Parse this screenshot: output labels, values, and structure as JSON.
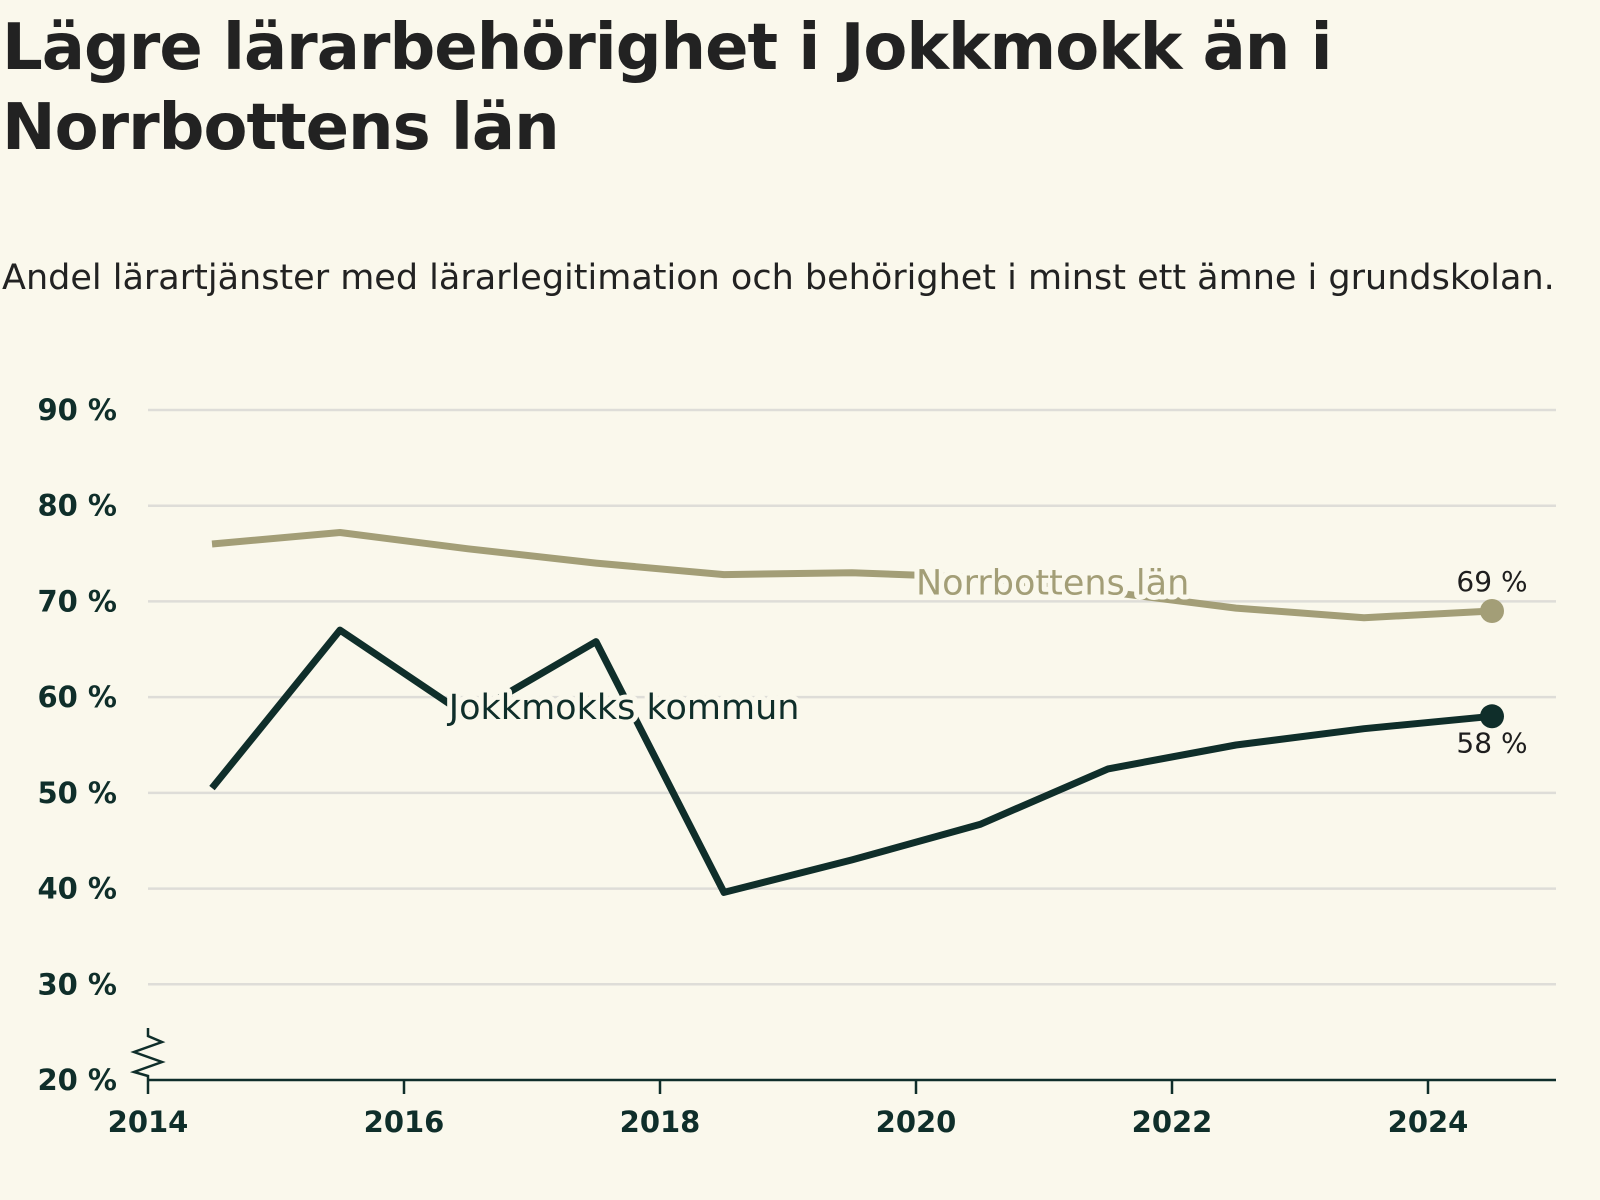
{
  "header": {
    "title": "Lägre lärarbehörighet i Jokkmokk än i Norrbottens län",
    "subtitle": "Andel lärartjänster med lärarlegitimation och behörighet i minst ett ämne i grundskolan."
  },
  "chart_data": {
    "type": "line",
    "x_ticks": [
      2014,
      2016,
      2018,
      2020,
      2022,
      2024
    ],
    "x_tick_labels": [
      "2014",
      "2016",
      "2018",
      "2020",
      "2022",
      "2024"
    ],
    "y_ticks": [
      20,
      30,
      40,
      50,
      60,
      70,
      80,
      90
    ],
    "y_tick_labels": [
      "20 %",
      "30 %",
      "40 %",
      "50 %",
      "60 %",
      "70 %",
      "80 %",
      "90 %"
    ],
    "xlim": [
      2014,
      2025
    ],
    "ylim": [
      20,
      90
    ],
    "y_axis_break": true,
    "grid": true,
    "series": [
      {
        "name": "Norrbottens län",
        "color": "#A39E77",
        "x": [
          2014.5,
          2015.5,
          2016.5,
          2017.5,
          2018.5,
          2019.5,
          2020.5,
          2021.5,
          2022.5,
          2023.5,
          2024.5
        ],
        "values": [
          76,
          77.2,
          75.5,
          74,
          72.8,
          73,
          72.5,
          71,
          69.3,
          68.3,
          69
        ],
        "end_label": "69 %"
      },
      {
        "name": "Jokkmokks kommun",
        "color": "#0F2E2A",
        "x": [
          2014.5,
          2015.5,
          2016.5,
          2017.5,
          2018.5,
          2019.5,
          2020.5,
          2021.5,
          2022.5,
          2023.5,
          2024.5
        ],
        "values": [
          50.5,
          67,
          58,
          65.8,
          39.6,
          43,
          46.7,
          52.5,
          55,
          56.7,
          58
        ],
        "end_label": "58 %"
      }
    ]
  }
}
